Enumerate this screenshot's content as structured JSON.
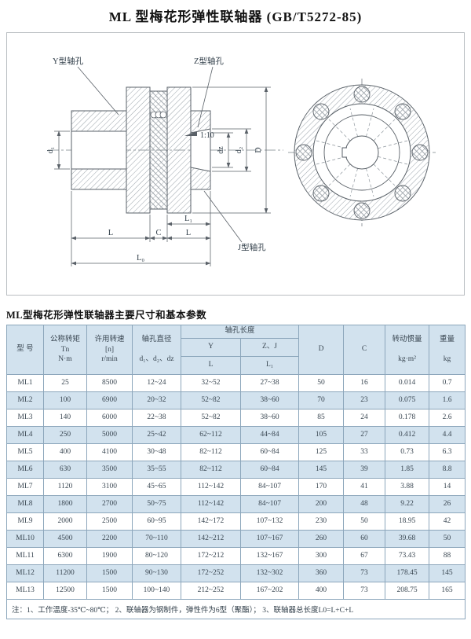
{
  "page": {
    "title": "ML 型梅花形弹性联轴器  (GB/T5272-85)"
  },
  "drawing": {
    "labels": {
      "y_hole": "Y型轴孔",
      "z_hole": "Z型轴孔",
      "j_hole": "J型轴孔",
      "taper": "1:10",
      "d1": "d₁",
      "dz": "dz",
      "d2": "d₂",
      "D": "D",
      "L_left": "L",
      "C": "C",
      "L_right": "L",
      "L1": "L₁",
      "L0": "L₀"
    }
  },
  "table": {
    "title": "ML型梅花形弹性联轴器主要尺寸和基本参数",
    "headers": {
      "model": "型 号",
      "torque_name": "公称转矩",
      "torque_sym": "Tn",
      "torque_unit": "N·m",
      "speed_name": "许用转速",
      "speed_sym": "[n]",
      "speed_unit": "r/min",
      "bore_name": "轴孔直径",
      "bore_sym": "d₁、d₂、dz",
      "length_group": "轴孔长度",
      "length_y": "Y",
      "length_zj": "Z、J",
      "length_y_sub": "L",
      "length_zj_sub": "L₁",
      "col_D": "D",
      "col_C": "C",
      "inertia_name": "转动惯量",
      "inertia_unit": "kg·m²",
      "weight_name": "重量",
      "weight_unit": "kg"
    },
    "rows": [
      [
        "ML1",
        "25",
        "8500",
        "12~24",
        "32~52",
        "27~38",
        "50",
        "16",
        "0.014",
        "0.7"
      ],
      [
        "ML2",
        "100",
        "6900",
        "20~32",
        "52~82",
        "38~60",
        "70",
        "23",
        "0.075",
        "1.6"
      ],
      [
        "ML3",
        "140",
        "6000",
        "22~38",
        "52~82",
        "38~60",
        "85",
        "24",
        "0.178",
        "2.6"
      ],
      [
        "ML4",
        "250",
        "5000",
        "25~42",
        "62~112",
        "44~84",
        "105",
        "27",
        "0.412",
        "4.4"
      ],
      [
        "ML5",
        "400",
        "4100",
        "30~48",
        "82~112",
        "60~84",
        "125",
        "33",
        "0.73",
        "6.3"
      ],
      [
        "ML6",
        "630",
        "3500",
        "35~55",
        "82~112",
        "60~84",
        "145",
        "39",
        "1.85",
        "8.8"
      ],
      [
        "ML7",
        "1120",
        "3100",
        "45~65",
        "112~142",
        "84~107",
        "170",
        "41",
        "3.88",
        "14"
      ],
      [
        "ML8",
        "1800",
        "2700",
        "50~75",
        "112~142",
        "84~107",
        "200",
        "48",
        "9.22",
        "26"
      ],
      [
        "ML9",
        "2000",
        "2500",
        "60~95",
        "142~172",
        "107~132",
        "230",
        "50",
        "18.95",
        "42"
      ],
      [
        "ML10",
        "4500",
        "2200",
        "70~110",
        "142~212",
        "107~167",
        "260",
        "60",
        "39.68",
        "50"
      ],
      [
        "ML11",
        "6300",
        "1900",
        "80~120",
        "172~212",
        "132~167",
        "300",
        "67",
        "73.43",
        "88"
      ],
      [
        "ML12",
        "11200",
        "1500",
        "90~130",
        "172~252",
        "132~302",
        "360",
        "73",
        "178.45",
        "145"
      ],
      [
        "ML13",
        "12500",
        "1500",
        "100~140",
        "212~252",
        "167~202",
        "400",
        "73",
        "208.75",
        "165"
      ]
    ],
    "note": "注：1、工作温度-35℃~80℃；  2、联轴器为钢制件，弹性件为6型（聚酯）；  3、联轴器总长度L0=L+C+L"
  },
  "colors": {
    "header_bg": "#d2e2ee",
    "stripe_bg": "#d2e2ee",
    "cell_border": "#8ca6bb",
    "line_art": "#5a6168",
    "text": "#3a4752"
  }
}
